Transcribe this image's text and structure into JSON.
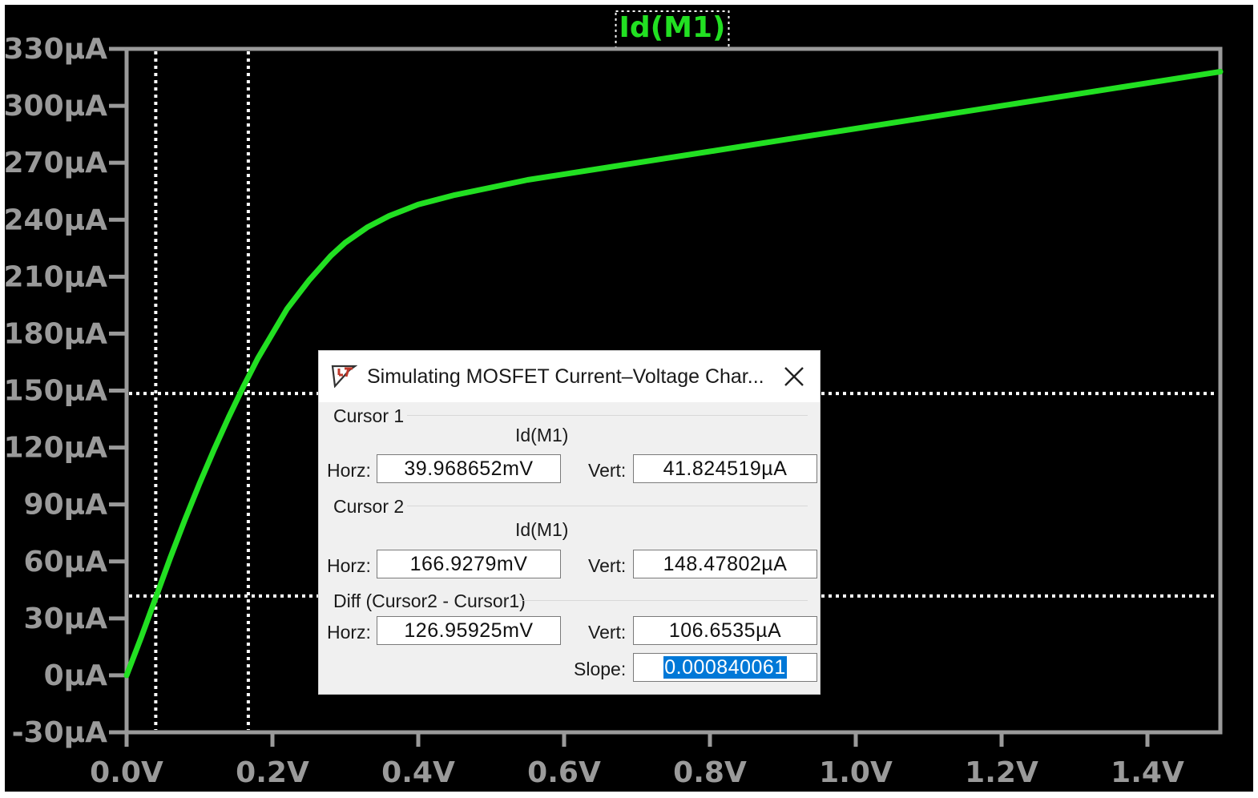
{
  "plot": {
    "trace_title": "Id(M1)",
    "background": "#000000",
    "trace_color": "#22e022",
    "axis_color": "#9a9a9a",
    "cursor_color": "#ffffff",
    "y_ticks": [
      "330µA",
      "300µA",
      "270µA",
      "240µA",
      "210µA",
      "180µA",
      "150µA",
      "120µA",
      "90µA",
      "60µA",
      "30µA",
      "0µA",
      "-30µA"
    ],
    "x_ticks": [
      "0.0V",
      "0.2V",
      "0.4V",
      "0.6V",
      "0.8V",
      "1.0V",
      "1.2V",
      "1.4V"
    ]
  },
  "chart_data": {
    "type": "line",
    "title": "Id(M1)",
    "xlim": [
      0,
      1.5
    ],
    "ylim": [
      -30,
      330
    ],
    "x_unit": "V",
    "y_unit": "µA",
    "series": [
      {
        "name": "Id(M1)",
        "x": [
          0,
          0.02,
          0.04,
          0.06,
          0.08,
          0.1,
          0.12,
          0.14,
          0.16,
          0.18,
          0.2,
          0.22,
          0.25,
          0.28,
          0.3,
          0.33,
          0.36,
          0.4,
          0.45,
          0.5,
          0.55,
          0.6,
          0.7,
          0.8,
          0.9,
          1.0,
          1.1,
          1.2,
          1.3,
          1.4,
          1.5
        ],
        "y": [
          0,
          20,
          41,
          62,
          82,
          101,
          119,
          136,
          152,
          167,
          180,
          193,
          208,
          221,
          228,
          236,
          242,
          248,
          253,
          257,
          261,
          264,
          270,
          276,
          282,
          288,
          294,
          300,
          306,
          312,
          318
        ]
      }
    ],
    "cursors": {
      "vertical_at_x": [
        0.039968652,
        0.1669279
      ],
      "horizontal_at_y": [
        41.824519,
        148.47802
      ]
    }
  },
  "dialog": {
    "title": "Simulating MOSFET Current–Voltage Char...",
    "cursor1": {
      "label": "Cursor 1",
      "trace": "Id(M1)",
      "horz_label": "Horz:",
      "horz": "39.968652mV",
      "vert_label": "Vert:",
      "vert": "41.824519µA"
    },
    "cursor2": {
      "label": "Cursor 2",
      "trace": "Id(M1)",
      "horz_label": "Horz:",
      "horz": "166.9279mV",
      "vert_label": "Vert:",
      "vert": "148.47802µA"
    },
    "diff": {
      "label": "Diff (Cursor2 - Cursor1)",
      "horz_label": "Horz:",
      "horz": "126.95925mV",
      "vert_label": "Vert:",
      "vert": "106.6535µA",
      "slope_label": "Slope:",
      "slope": "0.000840061"
    }
  }
}
